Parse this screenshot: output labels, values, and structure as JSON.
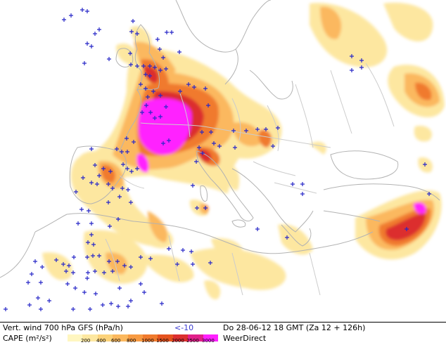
{
  "legend": {
    "line1_label": "Vert. wind 700 hPa GFS (hPa/h)",
    "line1_threshold": "<-10",
    "line1_date": "Do 28-06-12 18 GMT (Za 12 + 126h)",
    "line2_label": "CAPE (m²/s²)",
    "brand": "WeerDirect",
    "scale_values": [
      "200",
      "400",
      "600",
      "800",
      "1000",
      "1500",
      "2000",
      "2500",
      "3000"
    ],
    "scale_colors": [
      "#fff6c0",
      "#fde7a0",
      "#fcd27a",
      "#fbb85e",
      "#f79a42",
      "#f07a2d",
      "#e5531f",
      "#dc2f2f",
      "#e0208a",
      "#ff20ff"
    ]
  },
  "colors": {
    "coast": "#b3b3b3",
    "marker": "#2727c8"
  }
}
